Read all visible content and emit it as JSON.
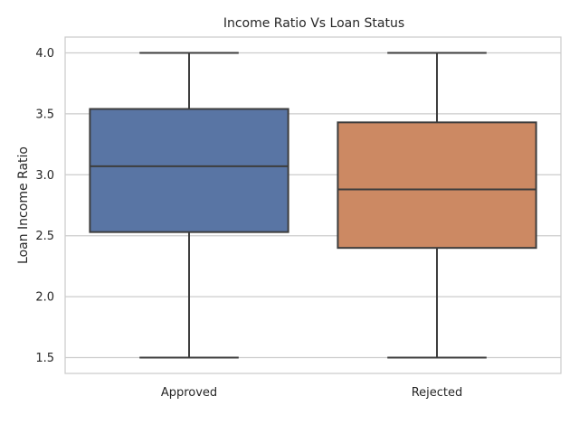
{
  "chart_data": {
    "type": "box",
    "title": "Income Ratio Vs Loan Status",
    "xlabel": "",
    "ylabel": "Loan Income Ratio",
    "ylim": [
      1.37,
      4.13
    ],
    "yticks": [
      "1.5",
      "2.0",
      "2.5",
      "3.0",
      "3.5",
      "4.0"
    ],
    "grid": true,
    "categories": [
      "Approved",
      "Rejected"
    ],
    "boxes": [
      {
        "category": "Approved",
        "color": "#5975a4",
        "min": 1.5,
        "q1": 2.53,
        "median": 3.07,
        "q3": 3.54,
        "max": 4.0
      },
      {
        "category": "Rejected",
        "color": "#cc8963",
        "min": 1.5,
        "q1": 2.4,
        "median": 2.88,
        "q3": 3.43,
        "max": 4.0
      }
    ],
    "styles": {
      "grid_color": "#cccccc",
      "line_color": "#3d3d3d",
      "frame_color": "#cccccc"
    }
  }
}
